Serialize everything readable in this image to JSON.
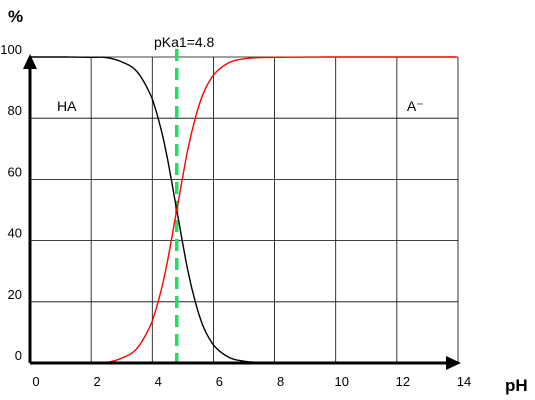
{
  "chart_data": {
    "type": "line",
    "xlabel": "pH",
    "ylabel": "%",
    "xlim": [
      0,
      14
    ],
    "ylim": [
      0,
      100
    ],
    "x_ticks": [
      0,
      2,
      4,
      6,
      8,
      10,
      12,
      14
    ],
    "y_ticks": [
      0,
      20,
      40,
      60,
      80,
      100
    ],
    "grid": true,
    "pKa": 4.8,
    "marker_label": "pKa1=4.8",
    "series": [
      {
        "name": "HA",
        "color": "#000000",
        "x": [
          0,
          1,
          2,
          2.5,
          3,
          3.5,
          4,
          4.4,
          4.8,
          5.2,
          5.6,
          6,
          6.5,
          7,
          7.5,
          8,
          10,
          12,
          14
        ],
        "y": [
          100,
          100,
          99.9,
          99.8,
          98.4,
          95.2,
          86.3,
          71.5,
          50,
          28.5,
          13.7,
          5.9,
          1.9,
          0.6,
          0.2,
          0.1,
          0,
          0,
          0
        ]
      },
      {
        "name": "A⁻",
        "color": "#ff0000",
        "x": [
          0,
          1,
          2,
          2.5,
          3,
          3.5,
          4,
          4.4,
          4.8,
          5.2,
          5.6,
          6,
          6.5,
          7,
          7.5,
          8,
          10,
          12,
          14
        ],
        "y": [
          0,
          0,
          0.1,
          0.2,
          1.6,
          4.8,
          13.7,
          28.5,
          50,
          71.5,
          86.3,
          94.1,
          98.1,
          99.4,
          99.8,
          99.9,
          100,
          100,
          100
        ]
      }
    ],
    "annotations": [
      {
        "text": "HA",
        "x": 1.2,
        "y": 84
      },
      {
        "text": "A⁻",
        "x": 12.6,
        "y": 84
      }
    ]
  }
}
